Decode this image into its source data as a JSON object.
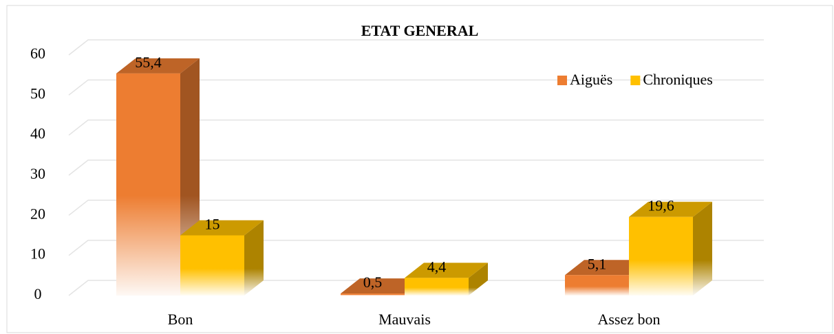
{
  "chart_data": {
    "type": "bar3d",
    "title": "ETAT GENERAL",
    "categories": [
      "Bon",
      "Mauvais",
      "Assez bon"
    ],
    "series": [
      {
        "name": "Aiguës",
        "color": "#ED7D31",
        "values": [
          55.4,
          0.5,
          5.1
        ],
        "value_labels": [
          "55,4",
          "0,5",
          "5,1"
        ]
      },
      {
        "name": "Chroniques",
        "color": "#FFC000",
        "values": [
          15,
          4.4,
          19.6
        ],
        "value_labels": [
          "15",
          "4,4",
          "19,6"
        ]
      }
    ],
    "ylim": [
      0,
      60
    ],
    "yticks": [
      0,
      10,
      20,
      30,
      40,
      50,
      60
    ],
    "grid": true,
    "legend": "top-right"
  }
}
